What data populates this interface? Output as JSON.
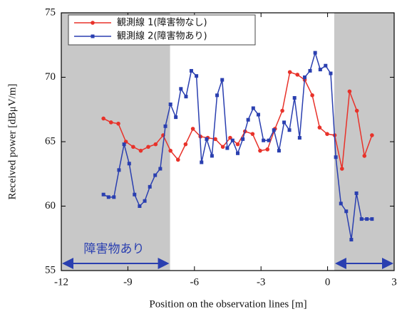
{
  "chart_data": {
    "type": "line",
    "xlabel": "Position on the observation lines [m]",
    "ylabel": "Received power [dBμV/m]",
    "xlim": [
      -12,
      3
    ],
    "xticks": [
      -12,
      -9,
      -6,
      -3,
      0,
      3
    ],
    "ylim": [
      55,
      75
    ],
    "yticks": [
      55,
      60,
      65,
      70,
      75
    ],
    "legend": "upper left",
    "shaded_regions": [
      [
        -12,
        -7.1
      ],
      [
        0.3,
        3
      ]
    ],
    "annotation": "障害物あり",
    "series": [
      {
        "name": "観測線 1(障害物なし)",
        "color": "#e8322a",
        "marker": "circle",
        "x": [
          -10.1,
          -9.76,
          -9.43,
          -9.09,
          -8.76,
          -8.42,
          -8.08,
          -7.75,
          -7.41,
          -7.08,
          -6.74,
          -6.4,
          -6.07,
          -5.73,
          -5.4,
          -5.06,
          -4.72,
          -4.39,
          -4.05,
          -3.72,
          -3.38,
          -3.04,
          -2.71,
          -2.37,
          -2.04,
          -1.7,
          -1.36,
          -1.03,
          -0.69,
          -0.36,
          -0.02,
          0.32,
          0.65,
          0.99,
          1.32,
          1.66,
          2.0
        ],
        "values": [
          66.8,
          66.5,
          66.4,
          65.0,
          64.6,
          64.3,
          64.6,
          64.8,
          65.5,
          64.3,
          63.6,
          64.8,
          66.0,
          65.4,
          65.3,
          65.2,
          64.6,
          65.3,
          64.8,
          65.8,
          65.6,
          64.3,
          64.4,
          66.0,
          67.4,
          70.4,
          70.2,
          69.8,
          68.6,
          66.1,
          65.6,
          65.5,
          62.9,
          68.9,
          67.4,
          63.9,
          65.5
        ]
      },
      {
        "name": "観測線 2(障害物あり)",
        "color": "#2a3fb0",
        "marker": "square",
        "x": [
          -10.1,
          -9.87,
          -9.63,
          -9.4,
          -9.17,
          -8.94,
          -8.7,
          -8.47,
          -8.24,
          -8.01,
          -7.77,
          -7.54,
          -7.31,
          -7.08,
          -6.84,
          -6.61,
          -6.38,
          -6.14,
          -5.91,
          -5.68,
          -5.45,
          -5.21,
          -4.98,
          -4.75,
          -4.52,
          -4.28,
          -4.05,
          -3.82,
          -3.58,
          -3.35,
          -3.12,
          -2.89,
          -2.65,
          -2.42,
          -2.19,
          -1.96,
          -1.72,
          -1.49,
          -1.26,
          -1.03,
          -0.79,
          -0.56,
          -0.33,
          -0.09,
          0.14,
          0.37,
          0.6,
          0.84,
          1.07,
          1.3,
          1.53,
          1.77,
          2.0
        ],
        "values": [
          60.9,
          60.7,
          60.7,
          62.8,
          64.8,
          63.3,
          60.9,
          60.0,
          60.4,
          61.5,
          62.4,
          62.9,
          66.2,
          67.9,
          66.9,
          69.1,
          68.5,
          70.5,
          70.1,
          63.4,
          65.2,
          63.9,
          68.6,
          69.8,
          64.5,
          65.1,
          64.1,
          65.2,
          66.7,
          67.6,
          67.1,
          65.1,
          65.1,
          65.9,
          64.3,
          66.5,
          65.9,
          68.4,
          65.3,
          70.0,
          70.5,
          71.9,
          70.6,
          70.9,
          70.3,
          63.8,
          60.2,
          59.6,
          57.4,
          61.0,
          59.0,
          59.0,
          59.0
        ]
      }
    ]
  }
}
